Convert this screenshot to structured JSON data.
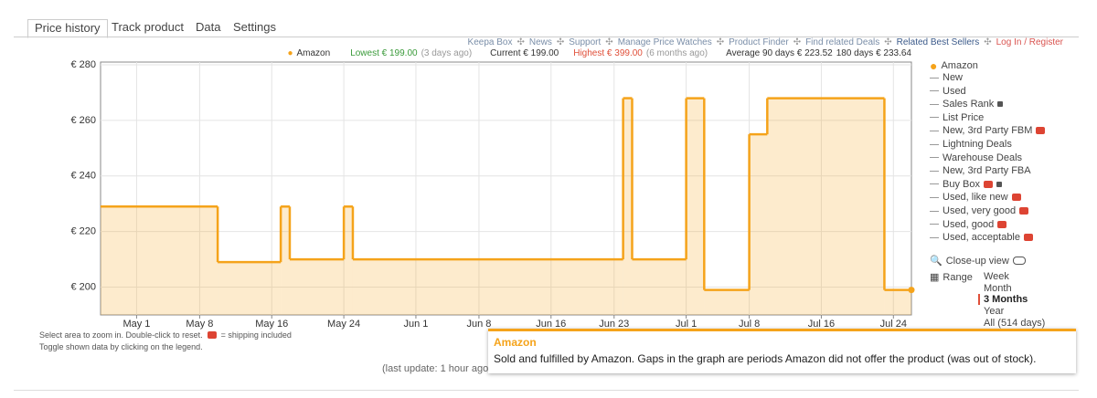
{
  "tabs": [
    "Price history",
    "Track product",
    "Data",
    "Settings"
  ],
  "links": [
    "Keepa Box",
    "News",
    "Support",
    "Manage Price Watches",
    "Product Finder",
    "Find related Deals",
    "Related Best Sellers",
    "Log In / Register"
  ],
  "stats": {
    "lowest": "Lowest € 199.00",
    "lowest_when": "(3 days ago)",
    "current": "Current € 199.00",
    "highest": "Highest € 399.00",
    "highest_when": "(6 months ago)",
    "average_90": "Average 90 days € 223.52",
    "average_180": "180 days € 233.64"
  },
  "chart_data": {
    "type": "line",
    "step": true,
    "x": [
      "Apr 27",
      "May 10",
      "May 17",
      "May 18",
      "May 24",
      "May 25",
      "Jun 24",
      "Jun 25",
      "Jul 1",
      "Jul 3",
      "Jul 8",
      "Jul 10",
      "Jul 23",
      "Jul 26"
    ],
    "series": [
      {
        "name": "Amazon",
        "color": "#f5a31a",
        "values": [
          229,
          209,
          229,
          210,
          229,
          210,
          268,
          210,
          268,
          199,
          255,
          268,
          199,
          199
        ]
      }
    ],
    "xlim": [
      "Apr 27",
      "Jul 26"
    ],
    "xticks": [
      "May 1",
      "May 8",
      "May 16",
      "May 24",
      "Jun 1",
      "Jun 8",
      "Jun 16",
      "Jun 23",
      "Jul 1",
      "Jul 8",
      "Jul 16",
      "Jul 24"
    ],
    "ylim": [
      190,
      281
    ],
    "yticks": [
      {
        "value": 200,
        "label": "€ 200"
      },
      {
        "value": 220,
        "label": "€ 220"
      },
      {
        "value": 240,
        "label": "€ 240"
      },
      {
        "value": 260,
        "label": "€ 260"
      },
      {
        "value": 280,
        "label": "€ 280"
      }
    ],
    "grid": true
  },
  "legend": [
    "New",
    "Used",
    "Sales Rank",
    "List Price",
    "New, 3rd Party FBM",
    "Lightning Deals",
    "Warehouse Deals",
    "New, 3rd Party FBA",
    "Buy Box",
    "Used, like new",
    "Used, very good",
    "Used, good",
    "Used, acceptable"
  ],
  "closeup": "Close-up view",
  "range": {
    "label": "Range",
    "options": [
      "Week",
      "Month",
      "3 Months",
      "Year",
      "All (514 days)"
    ]
  },
  "notes": {
    "zoom": "Select area to zoom in. Double-click to reset.",
    "shipping": "= shipping included",
    "toggle": "Toggle shown data by clicking on the legend."
  },
  "tooltip": {
    "text": "Sold and fulfilled by Amazon. Gaps in the graph are periods Amazon did not offer the product (was out of stock)."
  },
  "last_update": "(last update: 1 hour ago"
}
